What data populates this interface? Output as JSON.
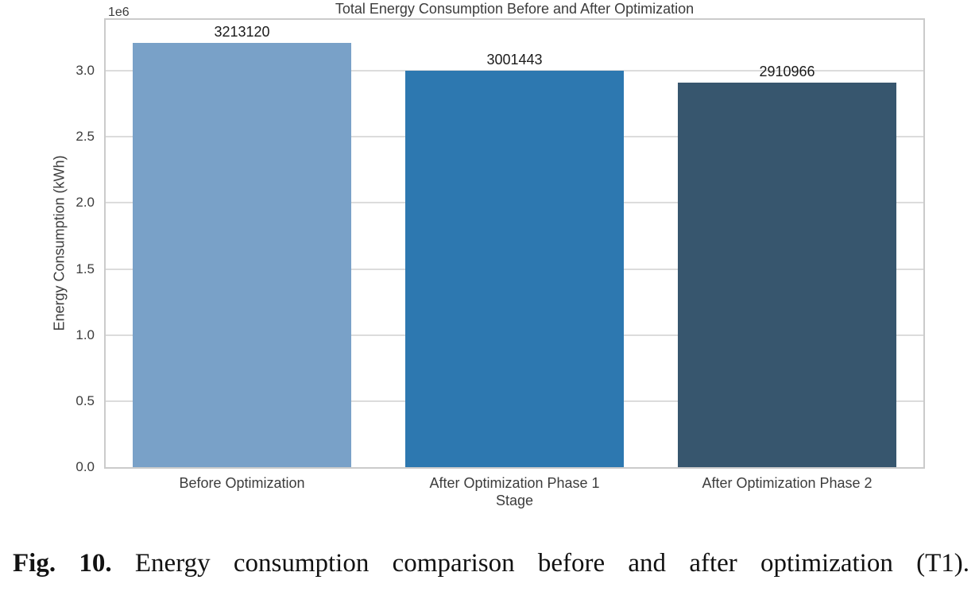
{
  "chart_data": {
    "type": "bar",
    "title": "Total Energy Consumption Before and After Optimization",
    "xlabel": "Stage",
    "ylabel": "Energy Consumption (kWh)",
    "y_offset_label": "1e6",
    "categories": [
      "Before Optimization",
      "After Optimization Phase 1",
      "After Optimization Phase 2"
    ],
    "values": [
      3213120,
      3001443,
      2910966
    ],
    "bar_labels": [
      "3213120",
      "3001443",
      "2910966"
    ],
    "bar_colors": [
      "#79a1c8",
      "#2d78b0",
      "#37566e"
    ],
    "ylim": [
      0,
      3385000
    ],
    "yticks_e6": [
      0.0,
      0.5,
      1.0,
      1.5,
      2.0,
      2.5,
      3.0
    ],
    "ytick_labels": [
      "0.0",
      "0.5",
      "1.0",
      "1.5",
      "2.0",
      "2.5",
      "3.0"
    ],
    "grid": "horizontal",
    "legend": "none",
    "bar_relative_width": 0.8
  },
  "caption": {
    "label": "Fig. 10.",
    "text": "Energy consumption comparison before and after optimization (T1)."
  },
  "colors": {
    "background": "#ffffff",
    "spine": "#cbcbcb",
    "gridline": "#dcdcdc",
    "chart_text": "#3c3c3c",
    "value_text": "#1b1b1b",
    "caption_text": "#121212"
  }
}
